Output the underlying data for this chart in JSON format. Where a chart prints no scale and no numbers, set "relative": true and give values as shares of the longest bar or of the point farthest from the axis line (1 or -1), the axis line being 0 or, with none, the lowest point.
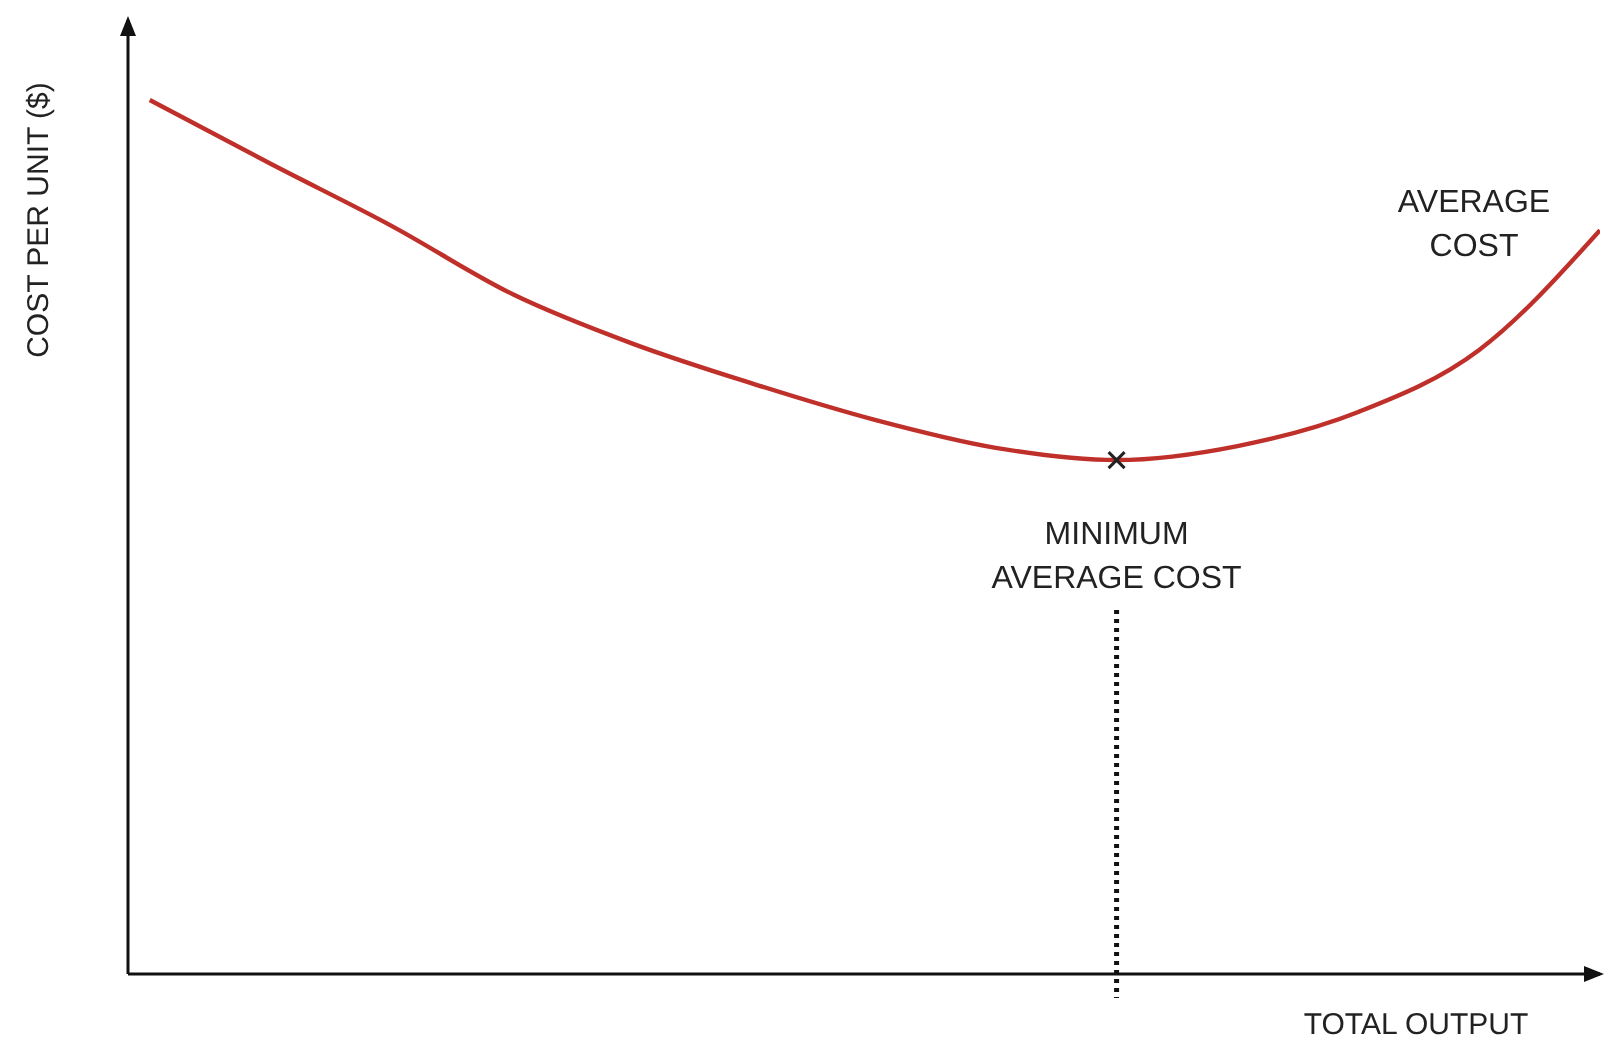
{
  "chart_data": {
    "type": "line",
    "relative": true,
    "xlabel": "TOTAL OUTPUT",
    "ylabel": "COST PER UNIT ($)",
    "categories": [
      null,
      null,
      null,
      null,
      null,
      null,
      null,
      null,
      null,
      null,
      null,
      null,
      null
    ],
    "series": [
      {
        "name": "AVERAGE COST",
        "color": "#c0302a",
        "values": [
          1,
          0.927,
          0.856,
          0.778,
          0.721,
          0.675,
          0.634,
          0.602,
          0.588,
          0.604,
          0.643,
          0.714,
          0.851
        ]
      }
    ],
    "annotations": [
      "MINIMUM AVERAGE COST"
    ],
    "legend": false,
    "grid": false,
    "marker": "none",
    "line_style": "solid"
  }
}
